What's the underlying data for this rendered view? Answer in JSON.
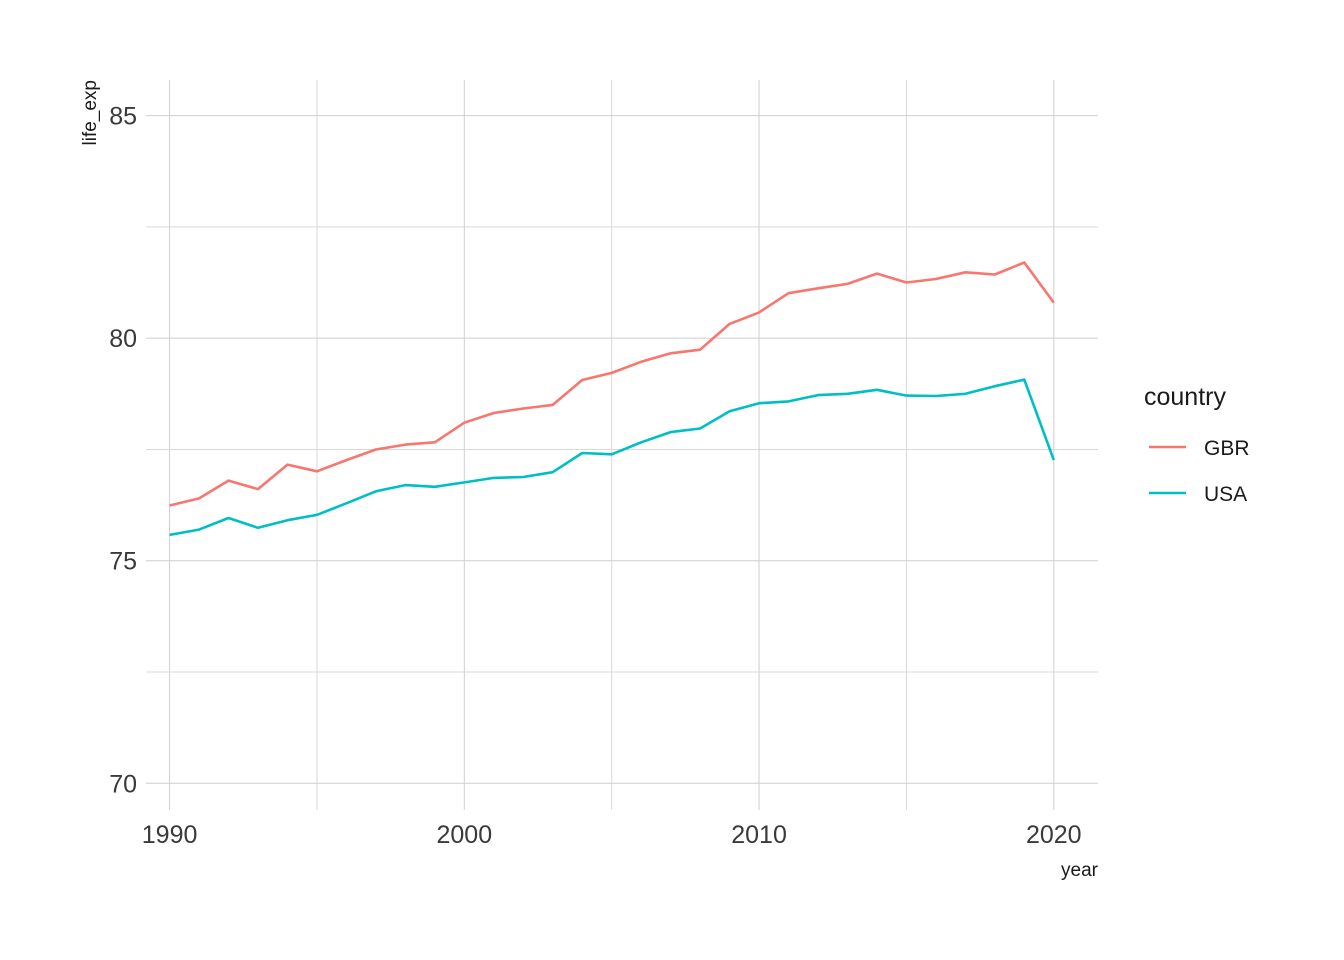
{
  "chart_data": {
    "type": "line",
    "xlabel": "year",
    "ylabel": "life_exp",
    "xlim": [
      1989.2,
      2021.5
    ],
    "ylim": [
      69.4,
      85.8
    ],
    "x_ticks": [
      1990,
      2000,
      2010,
      2020
    ],
    "x_minor_ticks": [
      1995,
      2005,
      2015
    ],
    "y_ticks": [
      70,
      75,
      80,
      85
    ],
    "y_minor_ticks": [
      72.5,
      77.5,
      82.5
    ],
    "x_tick_labels": [
      "1990",
      "2000",
      "2010",
      "2020"
    ],
    "y_tick_labels": [
      "70",
      "75",
      "80",
      "85"
    ],
    "grid": true,
    "legend": {
      "title": "country",
      "position": "right"
    },
    "x": [
      1990,
      1991,
      1992,
      1993,
      1994,
      1995,
      1996,
      1997,
      1998,
      1999,
      2000,
      2001,
      2002,
      2003,
      2004,
      2005,
      2006,
      2007,
      2008,
      2009,
      2010,
      2011,
      2012,
      2013,
      2014,
      2015,
      2016,
      2017,
      2018,
      2019,
      2020
    ],
    "series": [
      {
        "name": "GBR",
        "color": "#F8766D",
        "values": [
          76.24,
          76.4,
          76.8,
          76.61,
          77.16,
          77.01,
          77.26,
          77.5,
          77.61,
          77.66,
          78.1,
          78.32,
          78.42,
          78.5,
          79.06,
          79.22,
          79.47,
          79.66,
          79.74,
          80.32,
          80.58,
          81.01,
          81.12,
          81.22,
          81.45,
          81.25,
          81.33,
          81.48,
          81.43,
          81.7,
          80.8
        ]
      },
      {
        "name": "USA",
        "color": "#00BFC4",
        "values": [
          75.58,
          75.7,
          75.96,
          75.74,
          75.91,
          76.03,
          76.29,
          76.56,
          76.7,
          76.66,
          76.76,
          76.86,
          76.88,
          76.99,
          77.42,
          77.39,
          77.66,
          77.89,
          77.97,
          78.36,
          78.54,
          78.58,
          78.72,
          78.75,
          78.84,
          78.71,
          78.7,
          78.75,
          78.92,
          79.07,
          77.26
        ]
      }
    ]
  }
}
